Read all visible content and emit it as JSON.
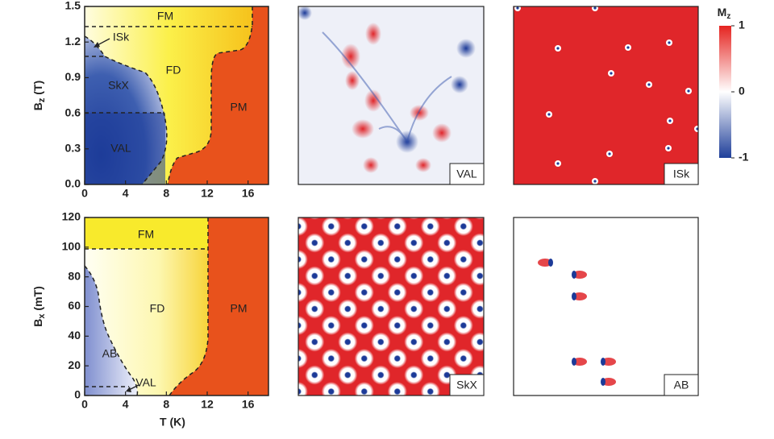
{
  "chart_data": [
    {
      "type": "phase",
      "xlim": [
        0,
        18
      ],
      "xticks": [
        0,
        4,
        8,
        12,
        16
      ],
      "ylim": [
        0,
        1.5
      ],
      "yticks": [
        {
          "value": 0,
          "label": "0.0"
        },
        0.3,
        0.6,
        0.9,
        1.2,
        1.5
      ],
      "ylabel": {
        "main": "B",
        "sub": "z",
        "unit": " (T)"
      },
      "regions": [
        "FM",
        "ISk",
        "SkX",
        "FD",
        "VAL",
        "PM"
      ]
    },
    {
      "type": "phase",
      "xlim": [
        0,
        18
      ],
      "xticks": [
        0,
        4,
        8,
        12,
        16
      ],
      "ylim": [
        0,
        120
      ],
      "yticks": [
        0,
        20,
        40,
        60,
        80,
        100,
        120
      ],
      "xlabel": "T (K)",
      "ylabel": {
        "main": "B",
        "sub": "x",
        "unit": " (mT)"
      },
      "regions": [
        "FM",
        "FD",
        "PM",
        "AB",
        "VAL"
      ]
    },
    {
      "type": "colorbar",
      "title": {
        "main": "M",
        "sub": "z"
      },
      "ylim": [
        -1,
        1
      ],
      "yticks": [
        1,
        0,
        -1
      ],
      "colors": [
        "#1f3f9a",
        "#ffffff",
        "#e52420"
      ]
    }
  ],
  "panels": [
    "VAL",
    "ISk",
    "SkX",
    "AB"
  ]
}
